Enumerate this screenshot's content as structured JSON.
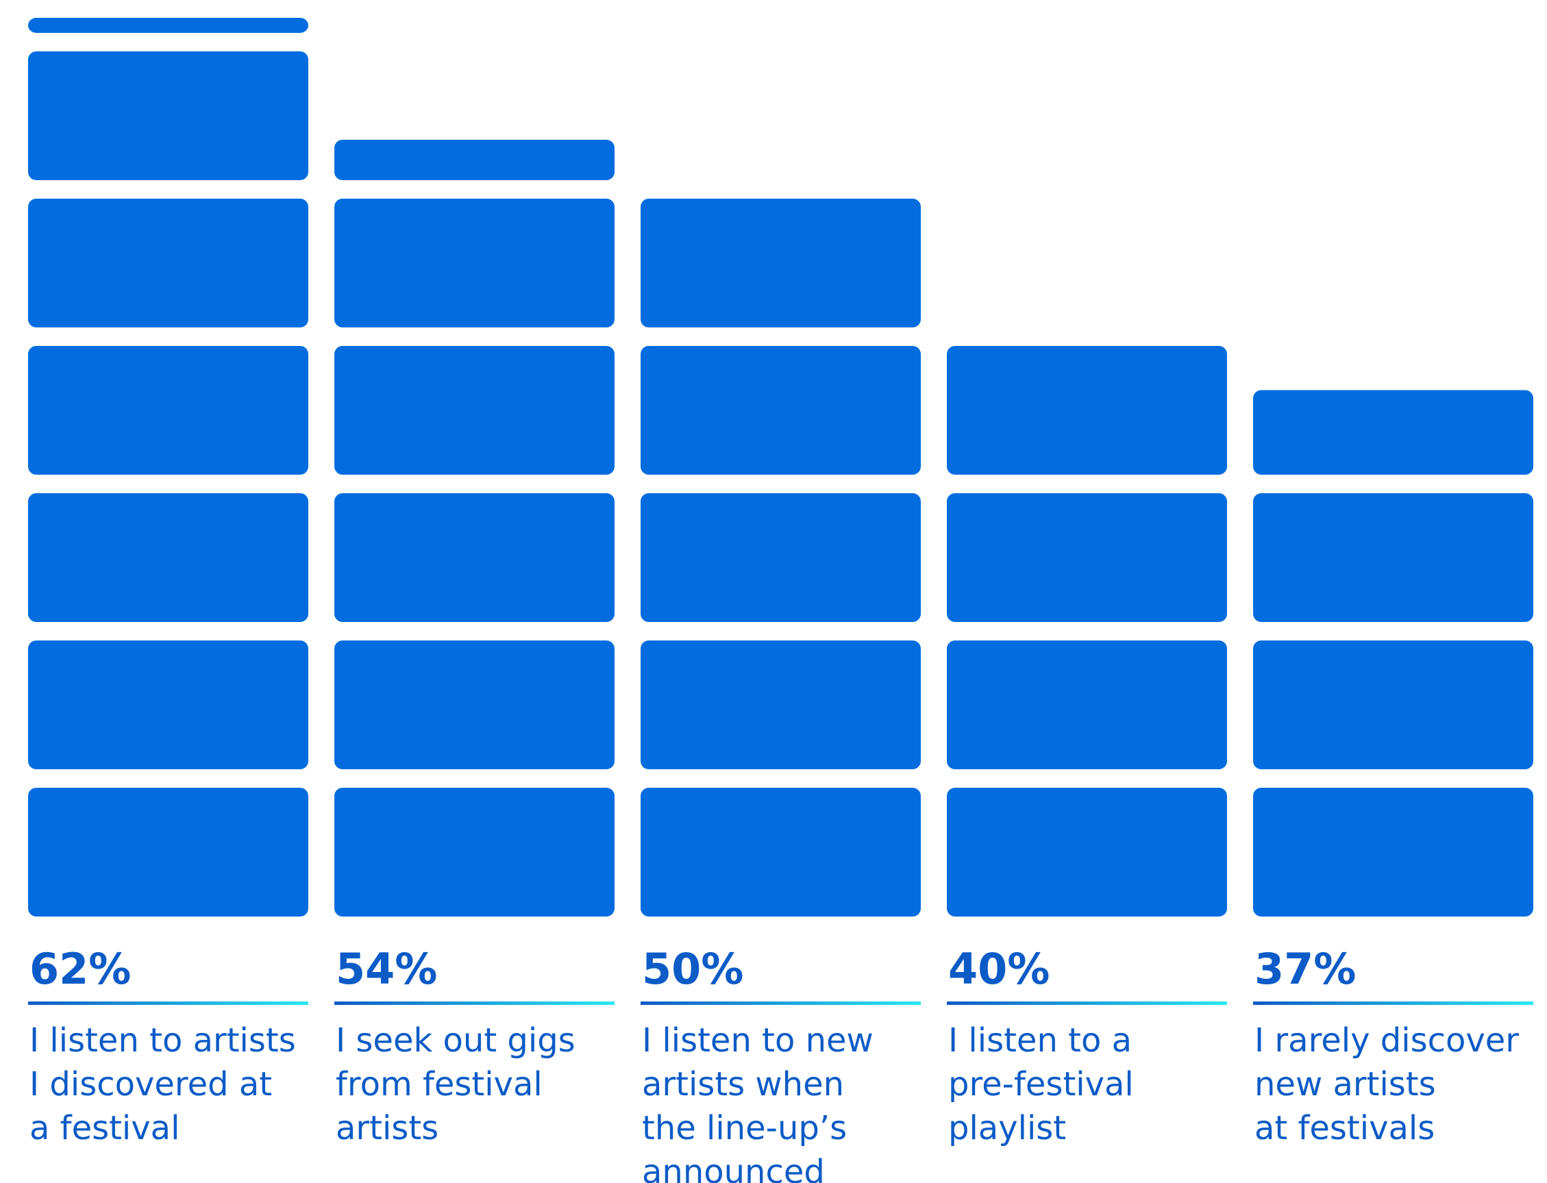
{
  "colors": {
    "bar": "#036ddf",
    "text": "#0c5bc6",
    "underline_start": "#0c5bc6",
    "underline_end": "#2ae8f2"
  },
  "chart_data": {
    "type": "bar",
    "style": "stacked-block pictogram",
    "categories": [
      [
        "I listen to artists",
        "I discovered at",
        "a festival"
      ],
      [
        "I seek out gigs",
        "from festival",
        "artists"
      ],
      [
        "I listen to new",
        "artists when",
        "the line-up’s",
        "announced"
      ],
      [
        "I listen to a",
        "pre-festival",
        "playlist"
      ],
      [
        "I rarely discover",
        "new artists",
        "at festivals"
      ]
    ],
    "values": [
      62,
      54,
      50,
      40,
      37
    ],
    "value_labels": [
      "62%",
      "54%",
      "50%",
      "40%",
      "37%"
    ],
    "unit": "%",
    "block_value": 10,
    "ylim": [
      0,
      70
    ],
    "grid": false,
    "legend": "none"
  }
}
